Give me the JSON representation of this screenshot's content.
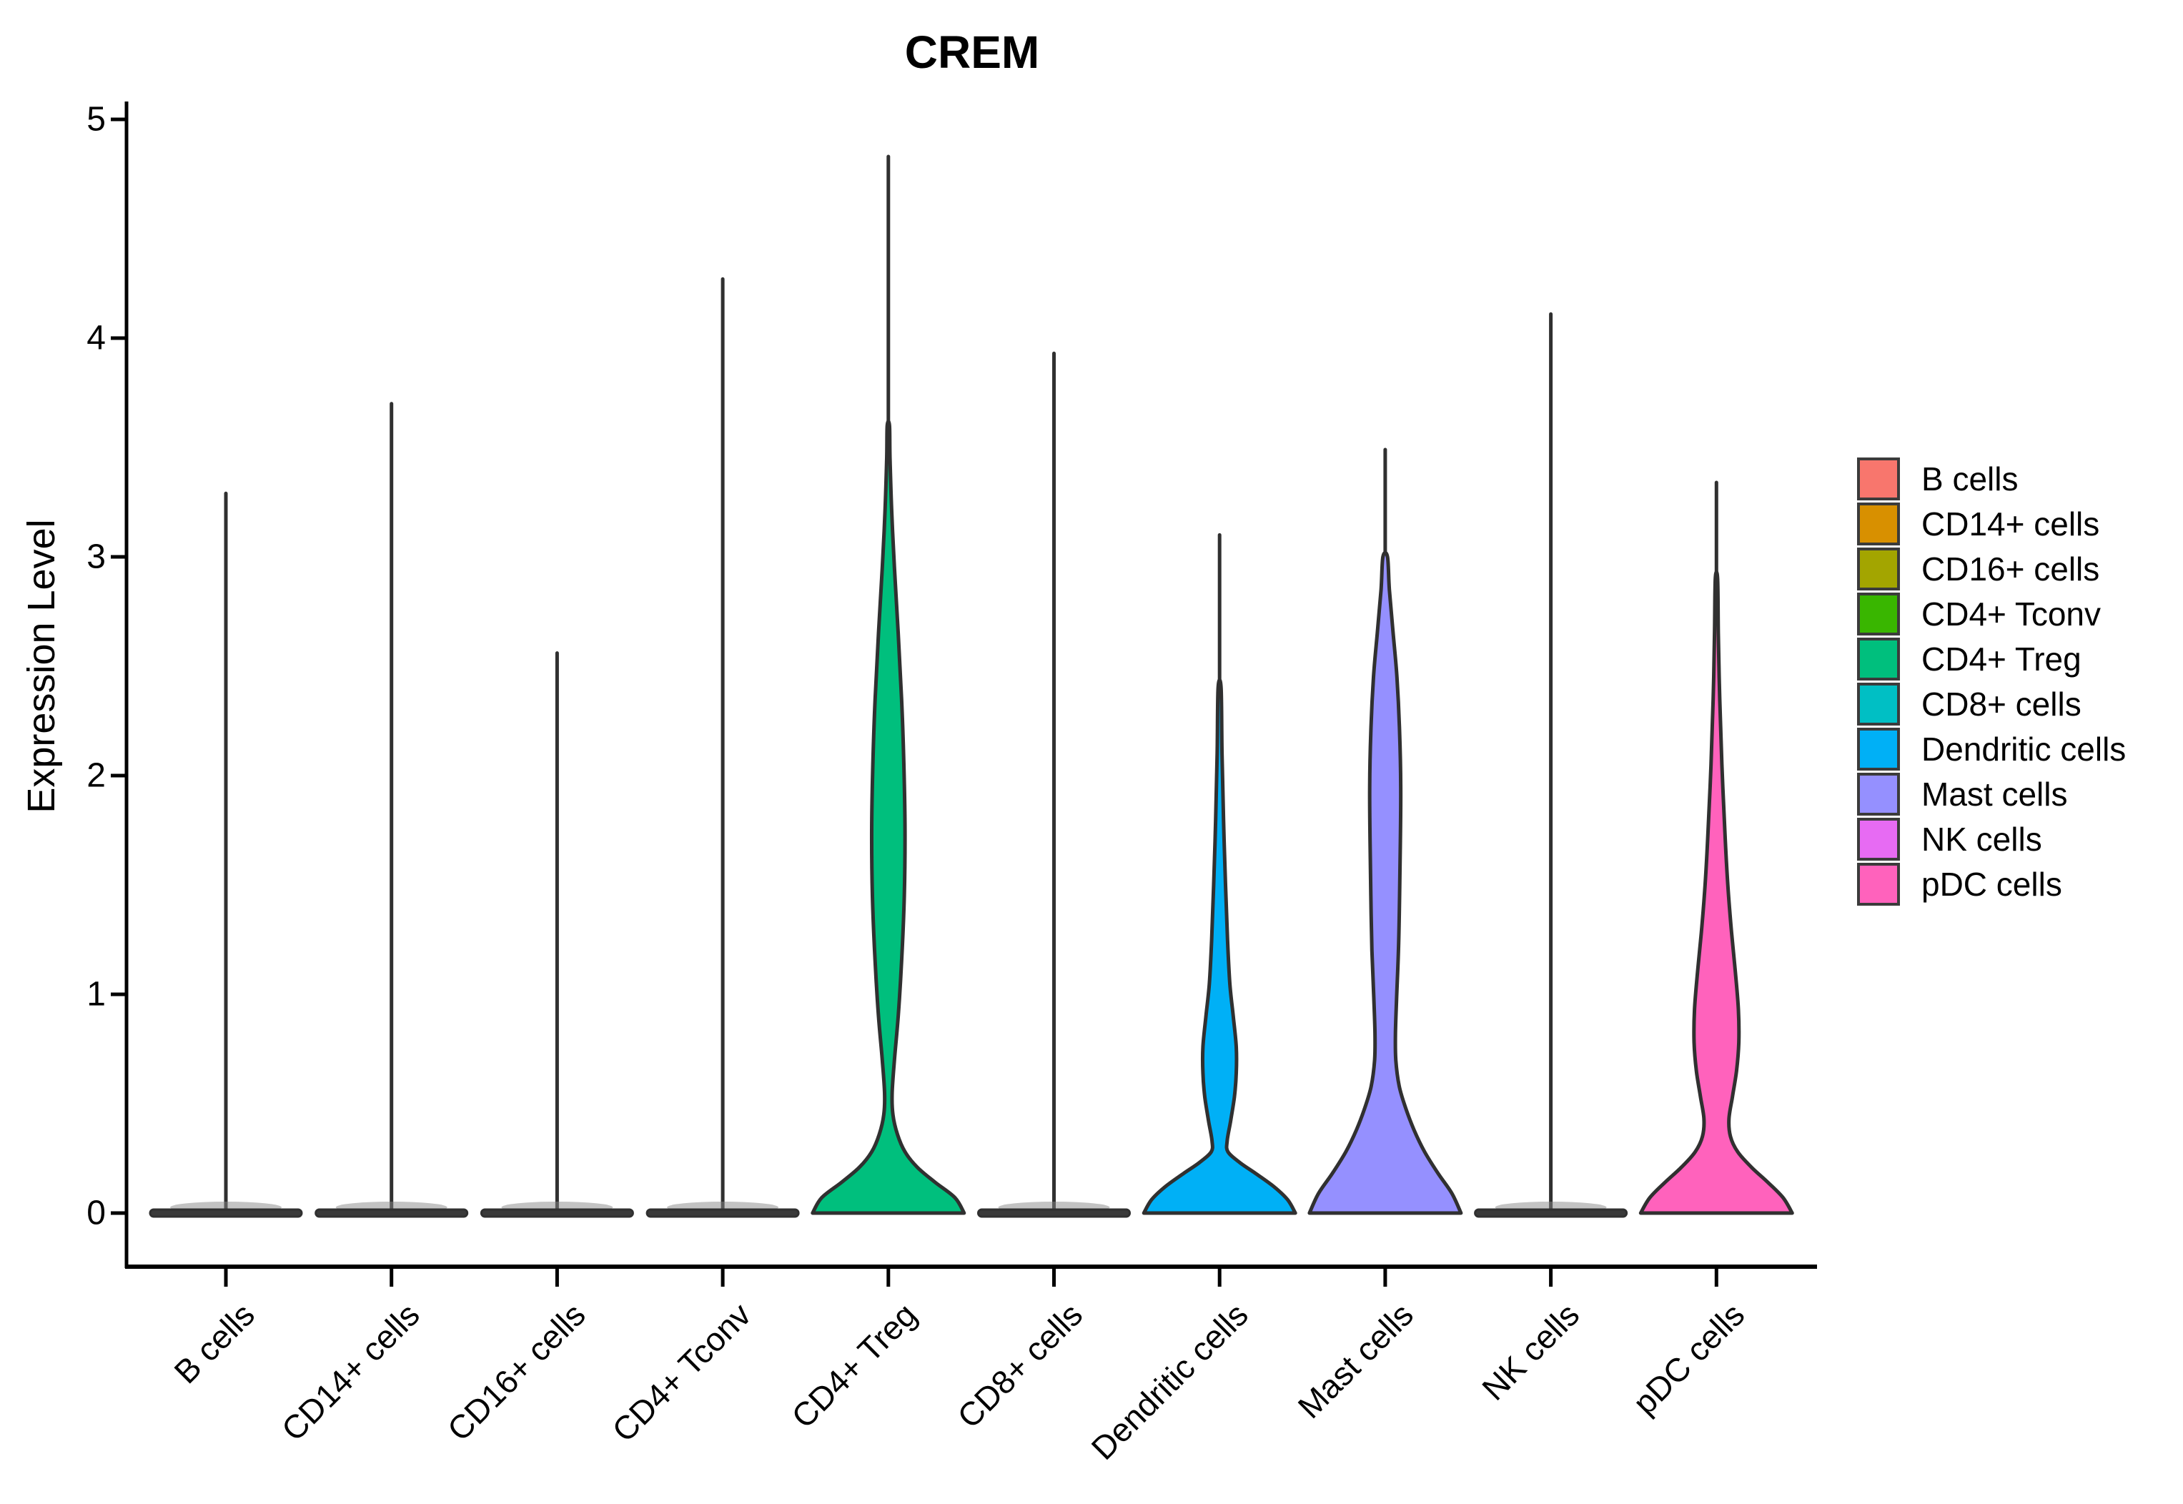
{
  "title": {
    "text": "CREM"
  },
  "y_axis": {
    "label": "Expression Level",
    "ticks": [
      "5",
      "4",
      "3",
      "2",
      "1",
      "0"
    ],
    "tick_values": [
      5,
      4,
      3,
      2,
      1,
      0
    ]
  },
  "x_axis": {
    "labels": [
      "B cells",
      "CD14+ cells",
      "CD16+ cells",
      "CD4+ Tconv",
      "CD4+ Treg",
      "CD8+ cells",
      "Dendritic cells",
      "Mast cells",
      "NK cells",
      "pDC cells"
    ]
  },
  "legend": {
    "position": "right",
    "items": [
      {
        "label": "B cells",
        "color": "#F8766D"
      },
      {
        "label": "CD14+ cells",
        "color": "#D89000"
      },
      {
        "label": "CD16+ cells",
        "color": "#A3A500"
      },
      {
        "label": "CD4+ Tconv",
        "color": "#39B600"
      },
      {
        "label": "CD4+ Treg",
        "color": "#00BF7D"
      },
      {
        "label": "CD8+ cells",
        "color": "#00BFC4"
      },
      {
        "label": "Dendritic cells",
        "color": "#00B0F6"
      },
      {
        "label": "Mast cells",
        "color": "#9590FF"
      },
      {
        "label": "NK cells",
        "color": "#E76BF3"
      },
      {
        "label": "pDC cells",
        "color": "#FF62BC"
      }
    ]
  },
  "chart_data": {
    "type": "violin",
    "title": "CREM",
    "xlabel": "",
    "ylabel": "Expression Level",
    "ylim": [
      0,
      5
    ],
    "grid": false,
    "outline_color": "#303030",
    "axis_color": "#000000",
    "categories": [
      "B cells",
      "CD14+ cells",
      "CD16+ cells",
      "CD4+ Tconv",
      "CD4+ Treg",
      "CD8+ cells",
      "Dendritic cells",
      "Mast cells",
      "NK cells",
      "pDC cells"
    ],
    "series": [
      {
        "name": "B cells",
        "color": "#F8766D",
        "flat": true,
        "max": 3.29,
        "description": "expression concentrated at 0, single thin tail to max"
      },
      {
        "name": "CD14+ cells",
        "color": "#D89000",
        "flat": true,
        "max": 3.7,
        "description": "expression concentrated at 0, single thin tail to max"
      },
      {
        "name": "CD16+ cells",
        "color": "#A3A500",
        "flat": true,
        "max": 2.56,
        "description": "expression concentrated at 0, single thin tail to max"
      },
      {
        "name": "CD4+ Tconv",
        "color": "#39B600",
        "flat": true,
        "max": 4.27,
        "description": "expression concentrated at 0, single thin tail to max"
      },
      {
        "name": "CD4+ Treg",
        "color": "#00BF7D",
        "flat": false,
        "max": 4.83,
        "spike_from": 3.6,
        "profile": [
          [
            0,
            1.0
          ],
          [
            0.07,
            0.88
          ],
          [
            0.14,
            0.62
          ],
          [
            0.21,
            0.38
          ],
          [
            0.28,
            0.22
          ],
          [
            0.36,
            0.12
          ],
          [
            0.45,
            0.06
          ],
          [
            0.55,
            0.05
          ],
          [
            0.7,
            0.08
          ],
          [
            0.9,
            0.13
          ],
          [
            1.15,
            0.175
          ],
          [
            1.45,
            0.21
          ],
          [
            1.75,
            0.22
          ],
          [
            2.05,
            0.205
          ],
          [
            2.35,
            0.175
          ],
          [
            2.65,
            0.13
          ],
          [
            2.95,
            0.08
          ],
          [
            3.2,
            0.045
          ],
          [
            3.45,
            0.022
          ],
          [
            3.6,
            0.015
          ]
        ]
      },
      {
        "name": "CD8+ cells",
        "color": "#00BFC4",
        "flat": true,
        "max": 3.93,
        "description": "expression concentrated at 0, single thin tail to max"
      },
      {
        "name": "Dendritic cells",
        "color": "#00B0F6",
        "flat": false,
        "max": 3.1,
        "spike_from": 2.4,
        "profile": [
          [
            0,
            1.0
          ],
          [
            0.06,
            0.9
          ],
          [
            0.12,
            0.72
          ],
          [
            0.18,
            0.48
          ],
          [
            0.23,
            0.27
          ],
          [
            0.28,
            0.11
          ],
          [
            0.33,
            0.1
          ],
          [
            0.42,
            0.145
          ],
          [
            0.53,
            0.195
          ],
          [
            0.64,
            0.22
          ],
          [
            0.76,
            0.22
          ],
          [
            0.9,
            0.18
          ],
          [
            1.05,
            0.135
          ],
          [
            1.25,
            0.105
          ],
          [
            1.5,
            0.078
          ],
          [
            1.8,
            0.052
          ],
          [
            2.1,
            0.032
          ],
          [
            2.4,
            0.02
          ]
        ]
      },
      {
        "name": "Mast cells",
        "color": "#9590FF",
        "flat": false,
        "max": 3.49,
        "spike_from": 3.0,
        "profile": [
          [
            0,
            1.0
          ],
          [
            0.09,
            0.88
          ],
          [
            0.18,
            0.7
          ],
          [
            0.28,
            0.52
          ],
          [
            0.38,
            0.38
          ],
          [
            0.48,
            0.27
          ],
          [
            0.58,
            0.185
          ],
          [
            0.7,
            0.14
          ],
          [
            0.82,
            0.135
          ],
          [
            0.98,
            0.15
          ],
          [
            1.2,
            0.175
          ],
          [
            1.45,
            0.19
          ],
          [
            1.7,
            0.2
          ],
          [
            1.95,
            0.205
          ],
          [
            2.2,
            0.19
          ],
          [
            2.45,
            0.155
          ],
          [
            2.65,
            0.105
          ],
          [
            2.85,
            0.055
          ],
          [
            3.0,
            0.03
          ]
        ]
      },
      {
        "name": "NK cells",
        "color": "#E76BF3",
        "flat": true,
        "max": 4.11,
        "description": "expression concentrated at 0, single thin tail to max"
      },
      {
        "name": "pDC cells",
        "color": "#FF62BC",
        "flat": false,
        "max": 3.34,
        "spike_from": 2.9,
        "profile": [
          [
            0,
            1.0
          ],
          [
            0.07,
            0.88
          ],
          [
            0.14,
            0.68
          ],
          [
            0.21,
            0.46
          ],
          [
            0.28,
            0.28
          ],
          [
            0.35,
            0.185
          ],
          [
            0.43,
            0.165
          ],
          [
            0.53,
            0.21
          ],
          [
            0.65,
            0.265
          ],
          [
            0.78,
            0.295
          ],
          [
            0.93,
            0.29
          ],
          [
            1.1,
            0.25
          ],
          [
            1.28,
            0.2
          ],
          [
            1.5,
            0.15
          ],
          [
            1.75,
            0.11
          ],
          [
            2.05,
            0.072
          ],
          [
            2.35,
            0.043
          ],
          [
            2.65,
            0.025
          ],
          [
            2.9,
            0.015
          ]
        ]
      }
    ]
  }
}
